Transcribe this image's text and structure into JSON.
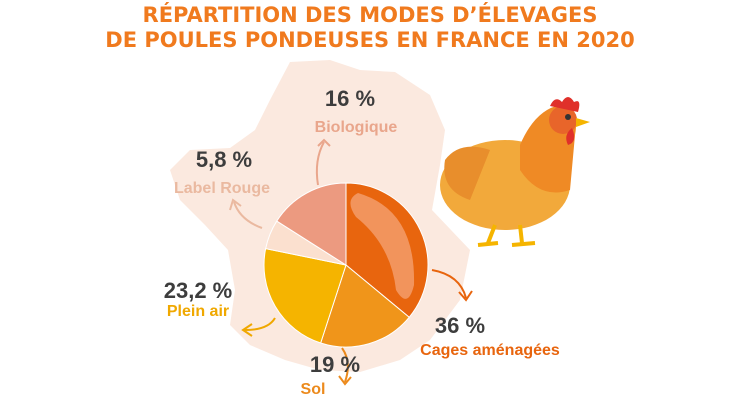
{
  "chart_data": {
    "type": "pie",
    "title_lines": [
      "RÉPARTITION DES MODES D’ÉLEVAGES",
      "DE POULES PONDEUSES EN FRANCE EN 2020"
    ],
    "categories": [
      "Cages aménagées",
      "Sol",
      "Plein air",
      "Label Rouge",
      "Biologique"
    ],
    "values": [
      36,
      19,
      23.2,
      5.8,
      16
    ],
    "value_labels": [
      "36 %",
      "19 %",
      "23,2 %",
      "5,8 %",
      "16 %"
    ],
    "colors": [
      "#e8650e",
      "#f0951a",
      "#f5b400",
      "#fbe0cf",
      "#ec9a80"
    ],
    "label_colors": [
      "#e8650e",
      "#ec8a1c",
      "#f0a800",
      "#eab9a0",
      "#e9a68c"
    ]
  }
}
